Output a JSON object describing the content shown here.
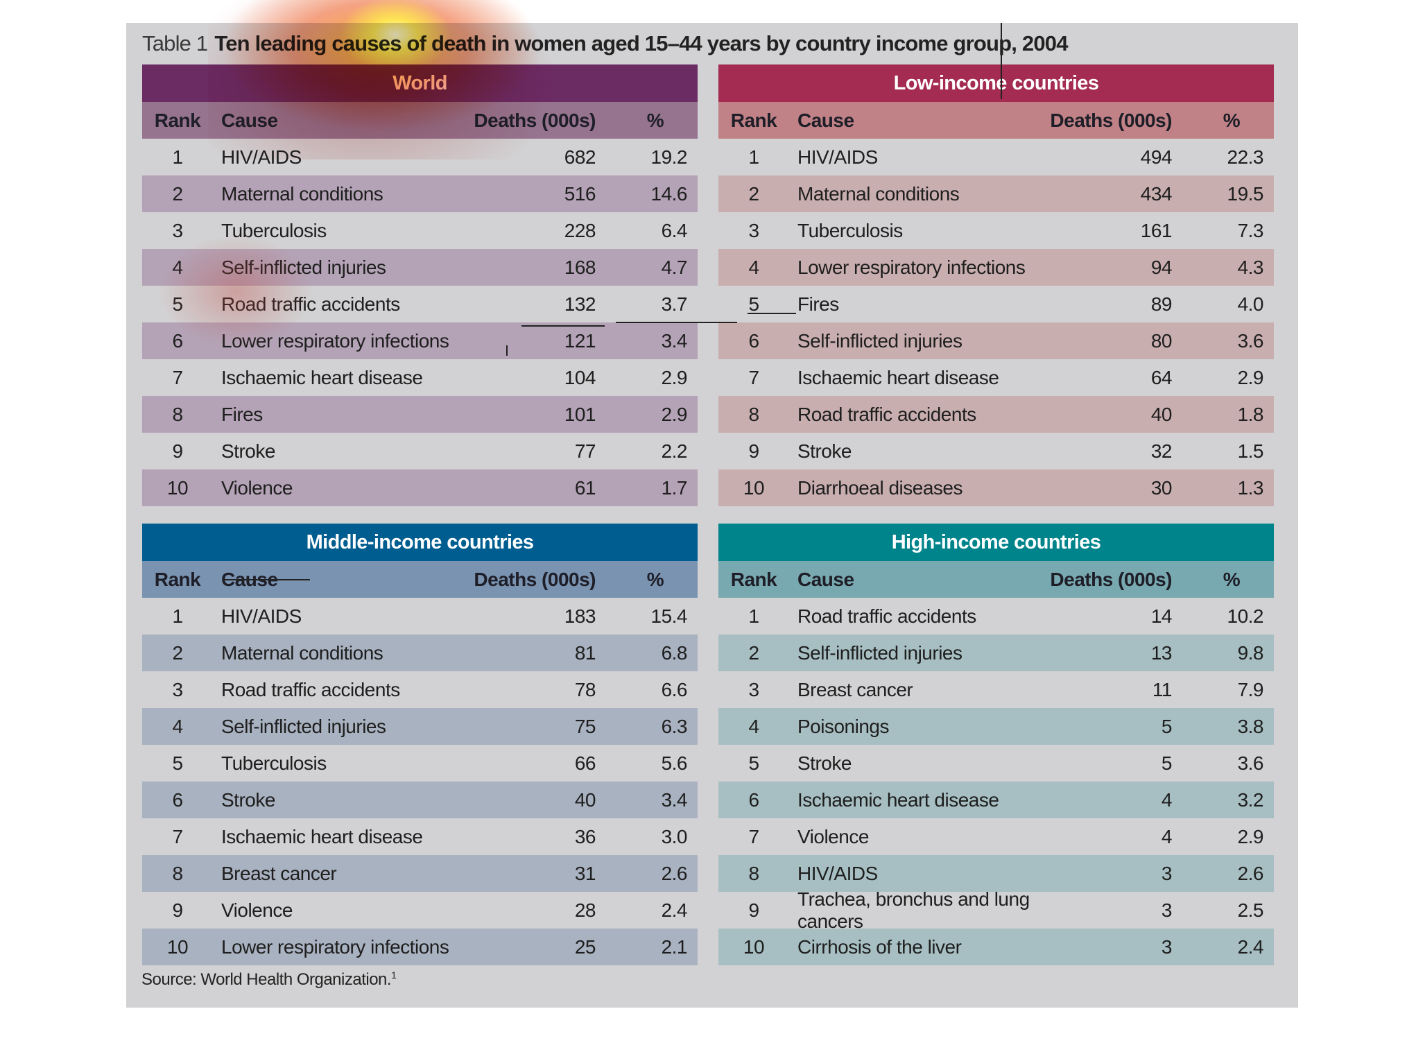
{
  "title": {
    "label": "Table 1",
    "text": "Ten leading causes of death in women aged 15–44 years by country income group, 2004"
  },
  "columns": {
    "rank": "Rank",
    "cause": "Cause",
    "deaths": "Deaths (000s)",
    "pct": "%"
  },
  "colors": {
    "world_head": "#6b2b63",
    "world_sub": "#96748f",
    "world_band": "#b4a3b6",
    "low_head": "#a42b52",
    "low_sub": "#c08286",
    "low_band": "#c9aeb0",
    "middle_head": "#005d90",
    "middle_sub": "#7a93b0",
    "middle_band": "#a9b2c0",
    "high_head": "#00848c",
    "high_sub": "#79a9b0",
    "high_band": "#a7bfc2",
    "panel": "#d2d1d3"
  },
  "tables": {
    "world": {
      "heading": "World",
      "rows": [
        {
          "rank": "1",
          "cause": "HIV/AIDS",
          "deaths": "682",
          "pct": "19.2"
        },
        {
          "rank": "2",
          "cause": "Maternal conditions",
          "deaths": "516",
          "pct": "14.6"
        },
        {
          "rank": "3",
          "cause": "Tuberculosis",
          "deaths": "228",
          "pct": "6.4"
        },
        {
          "rank": "4",
          "cause": "Self-inflicted injuries",
          "deaths": "168",
          "pct": "4.7"
        },
        {
          "rank": "5",
          "cause": "Road traffic accidents",
          "deaths": "132",
          "pct": "3.7"
        },
        {
          "rank": "6",
          "cause": "Lower respiratory infections",
          "deaths": "121",
          "pct": "3.4"
        },
        {
          "rank": "7",
          "cause": "Ischaemic heart disease",
          "deaths": "104",
          "pct": "2.9"
        },
        {
          "rank": "8",
          "cause": "Fires",
          "deaths": "101",
          "pct": "2.9"
        },
        {
          "rank": "9",
          "cause": "Stroke",
          "deaths": "77",
          "pct": "2.2"
        },
        {
          "rank": "10",
          "cause": "Violence",
          "deaths": "61",
          "pct": "1.7"
        }
      ]
    },
    "low": {
      "heading": "Low-income countries",
      "rows": [
        {
          "rank": "1",
          "cause": "HIV/AIDS",
          "deaths": "494",
          "pct": "22.3"
        },
        {
          "rank": "2",
          "cause": "Maternal conditions",
          "deaths": "434",
          "pct": "19.5"
        },
        {
          "rank": "3",
          "cause": "Tuberculosis",
          "deaths": "161",
          "pct": "7.3"
        },
        {
          "rank": "4",
          "cause": "Lower respiratory infections",
          "deaths": "94",
          "pct": "4.3"
        },
        {
          "rank": "5",
          "cause": "Fires",
          "deaths": "89",
          "pct": "4.0"
        },
        {
          "rank": "6",
          "cause": "Self-inflicted injuries",
          "deaths": "80",
          "pct": "3.6"
        },
        {
          "rank": "7",
          "cause": "Ischaemic heart disease",
          "deaths": "64",
          "pct": "2.9"
        },
        {
          "rank": "8",
          "cause": "Road traffic accidents",
          "deaths": "40",
          "pct": "1.8"
        },
        {
          "rank": "9",
          "cause": "Stroke",
          "deaths": "32",
          "pct": "1.5"
        },
        {
          "rank": "10",
          "cause": "Diarrhoeal diseases",
          "deaths": "30",
          "pct": "1.3"
        }
      ]
    },
    "middle": {
      "heading": "Middle-income countries",
      "rows": [
        {
          "rank": "1",
          "cause": "HIV/AIDS",
          "deaths": "183",
          "pct": "15.4"
        },
        {
          "rank": "2",
          "cause": "Maternal conditions",
          "deaths": "81",
          "pct": "6.8"
        },
        {
          "rank": "3",
          "cause": "Road traffic accidents",
          "deaths": "78",
          "pct": "6.6"
        },
        {
          "rank": "4",
          "cause": "Self-inflicted injuries",
          "deaths": "75",
          "pct": "6.3"
        },
        {
          "rank": "5",
          "cause": "Tuberculosis",
          "deaths": "66",
          "pct": "5.6"
        },
        {
          "rank": "6",
          "cause": "Stroke",
          "deaths": "40",
          "pct": "3.4"
        },
        {
          "rank": "7",
          "cause": "Ischaemic heart disease",
          "deaths": "36",
          "pct": "3.0"
        },
        {
          "rank": "8",
          "cause": "Breast cancer",
          "deaths": "31",
          "pct": "2.6"
        },
        {
          "rank": "9",
          "cause": "Violence",
          "deaths": "28",
          "pct": "2.4"
        },
        {
          "rank": "10",
          "cause": "Lower respiratory infections",
          "deaths": "25",
          "pct": "2.1"
        }
      ]
    },
    "high": {
      "heading": "High-income countries",
      "rows": [
        {
          "rank": "1",
          "cause": "Road traffic accidents",
          "deaths": "14",
          "pct": "10.2"
        },
        {
          "rank": "2",
          "cause": "Self-inflicted injuries",
          "deaths": "13",
          "pct": "9.8"
        },
        {
          "rank": "3",
          "cause": "Breast cancer",
          "deaths": "11",
          "pct": "7.9"
        },
        {
          "rank": "4",
          "cause": "Poisonings",
          "deaths": "5",
          "pct": "3.8"
        },
        {
          "rank": "5",
          "cause": "Stroke",
          "deaths": "5",
          "pct": "3.6"
        },
        {
          "rank": "6",
          "cause": "Ischaemic heart disease",
          "deaths": "4",
          "pct": "3.2"
        },
        {
          "rank": "7",
          "cause": "Violence",
          "deaths": "4",
          "pct": "2.9"
        },
        {
          "rank": "8",
          "cause": "HIV/AIDS",
          "deaths": "3",
          "pct": "2.6"
        },
        {
          "rank": "9",
          "cause": "Trachea, bronchus and lung cancers",
          "deaths": "3",
          "pct": "2.5"
        },
        {
          "rank": "10",
          "cause": "Cirrhosis of the liver",
          "deaths": "3",
          "pct": "2.4"
        }
      ]
    }
  },
  "source": {
    "text": "Source: World Health Organization.",
    "note": "1"
  }
}
